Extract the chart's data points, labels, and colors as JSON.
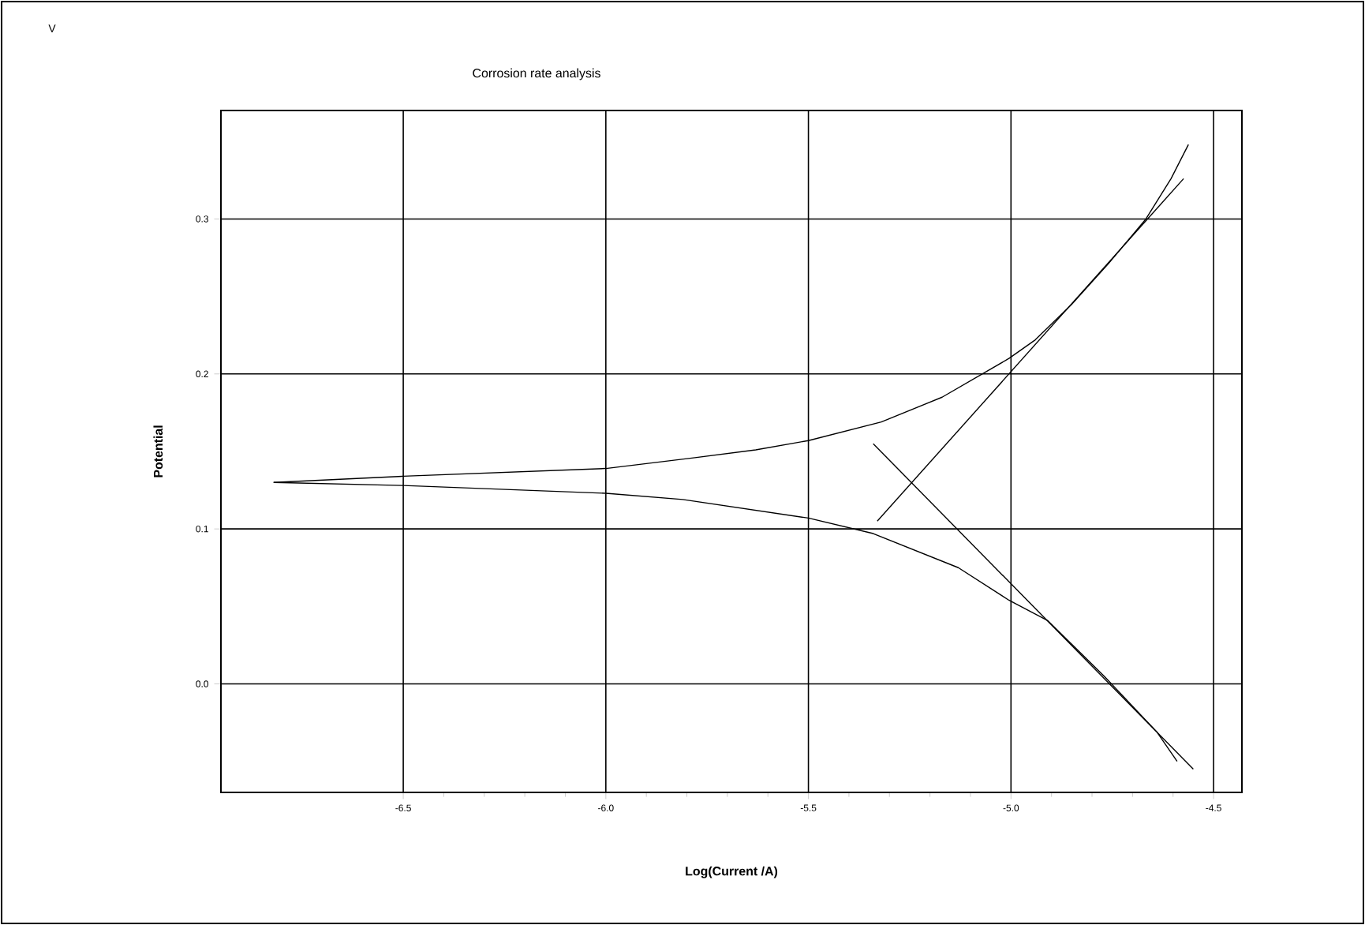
{
  "chart_data": {
    "type": "line",
    "title": "Corrosion rate analysis",
    "xlabel": "Log(Current /A)",
    "ylabel": "Potential",
    "annotations": [
      "V"
    ],
    "xlim": [
      -6.95,
      -4.43
    ],
    "ylim": [
      -0.07,
      0.37
    ],
    "xticks": [
      {
        "value": -6.5,
        "label": "-6.5"
      },
      {
        "value": -6.0,
        "label": "-6.0"
      },
      {
        "value": -5.5,
        "label": "-5.5"
      },
      {
        "value": -5.0,
        "label": "-5.0"
      },
      {
        "value": -4.5,
        "label": "-4.5"
      }
    ],
    "yticks": [
      {
        "value": 0.0,
        "label": "0.0"
      },
      {
        "value": 0.1,
        "label": "0.1"
      },
      {
        "value": 0.2,
        "label": "0.2"
      },
      {
        "value": 0.3,
        "label": "0.3"
      }
    ],
    "grid": true,
    "marker": "none",
    "line_style": "solid",
    "series": [
      {
        "color": "#000000",
        "x": [
          -6.82,
          -6.5,
          -6.0,
          -5.78,
          -5.63,
          -5.5,
          -5.32,
          -5.17,
          -5.005,
          -4.94,
          -4.85,
          -4.76,
          -4.667,
          -4.605,
          -4.562
        ],
        "values": [
          0.13,
          0.134,
          0.139,
          0.146,
          0.151,
          0.157,
          0.169,
          0.185,
          0.21,
          0.222,
          0.245,
          0.271,
          0.3,
          0.326,
          0.348
        ]
      },
      {
        "color": "#000000",
        "x": [
          -6.82,
          -6.5,
          -6.0,
          -5.81,
          -5.5,
          -5.34,
          -5.13,
          -5.005,
          -4.91,
          -4.77,
          -4.64,
          -4.59
        ],
        "values": [
          0.13,
          0.128,
          0.123,
          0.119,
          0.107,
          0.097,
          0.075,
          0.054,
          0.041,
          0.005,
          -0.031,
          -0.05
        ]
      },
      {
        "color": "#000000",
        "x": [
          -5.33,
          -4.574
        ],
        "values": [
          0.105,
          0.326
        ]
      },
      {
        "color": "#000000",
        "x": [
          -5.34,
          -4.55
        ],
        "values": [
          0.155,
          -0.055
        ]
      }
    ]
  }
}
